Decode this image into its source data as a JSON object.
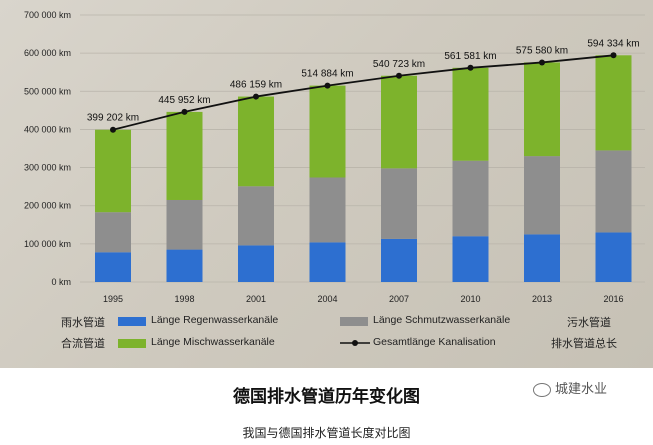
{
  "chart_data": {
    "type": "bar",
    "categories": [
      "1995",
      "1998",
      "2001",
      "2004",
      "2007",
      "2010",
      "2013",
      "2016"
    ],
    "series": [
      {
        "name": "Länge Regenwasserkanäle",
        "cn": "雨水管道",
        "color": "#2d6fd0",
        "values": [
          78000,
          85000,
          96000,
          104000,
          113000,
          120000,
          125000,
          130000
        ]
      },
      {
        "name": "Länge Schmutzwasserkanäle",
        "cn": "污水管道",
        "color": "#8e8e8e",
        "values": [
          105000,
          130000,
          155000,
          170000,
          185000,
          198000,
          205000,
          215000
        ]
      },
      {
        "name": "Länge Mischwasserkanäle",
        "cn": "合流管道",
        "color": "#7db32c",
        "values": [
          216202,
          230952,
          235159,
          240884,
          242723,
          243581,
          245580,
          249334
        ]
      }
    ],
    "line": {
      "name": "Gesamtlänge Kanalisation",
      "cn": "排水管道总长",
      "color": "#111111",
      "values": [
        399202,
        445952,
        486159,
        514884,
        540723,
        561581,
        575580,
        594334
      ],
      "labels": [
        "399 202 km",
        "445 952 km",
        "486 159 km",
        "514 884 km",
        "540 723 km",
        "561 581 km",
        "575 580 km",
        "594 334 km"
      ]
    },
    "ylim": [
      0,
      700000
    ],
    "yticks": [
      0,
      100000,
      200000,
      300000,
      400000,
      500000,
      600000,
      700000
    ],
    "ytick_labels": [
      "0 km",
      "100 000 km",
      "200 000 km",
      "300 000 km",
      "400 000 km",
      "500 000 km",
      "600 000 km",
      "700 000 km"
    ],
    "grid": true,
    "legend": "bottom",
    "stacked": true
  },
  "caption": {
    "title": "德国排水管道历年变化图",
    "subtitle": "我国与德国排水管道长度对比图"
  },
  "watermark": "城建水业"
}
